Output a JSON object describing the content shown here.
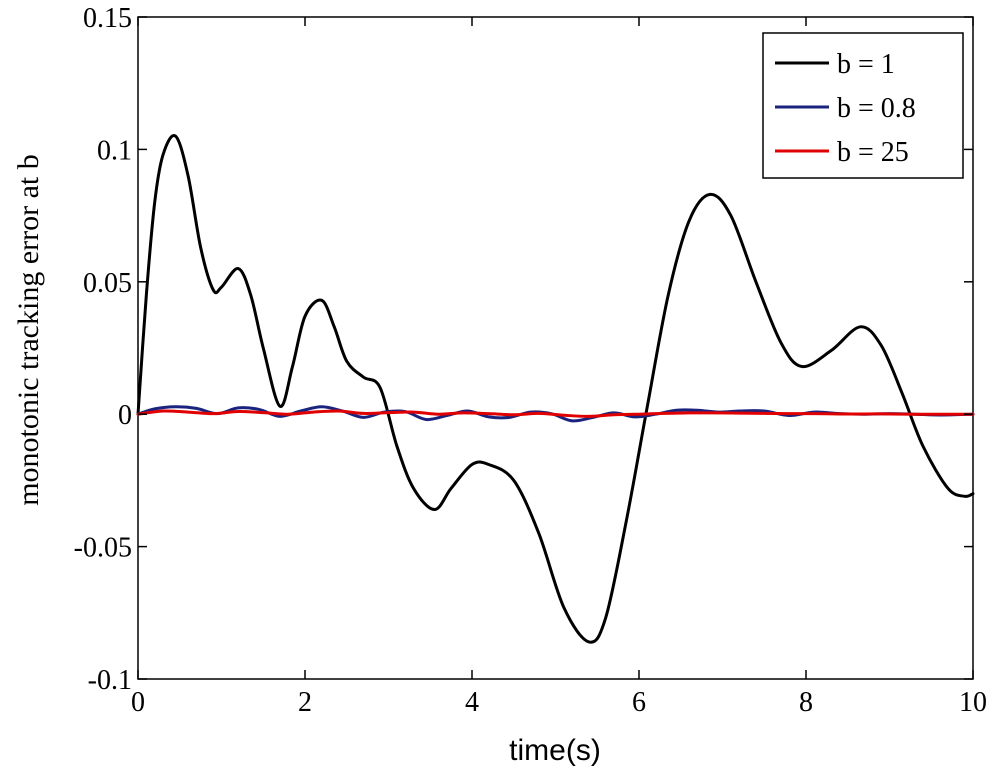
{
  "chart_data": {
    "type": "line",
    "title": "",
    "xlabel": "time(s)",
    "ylabel": "monotonic tracking error at b",
    "xlim": [
      0,
      10
    ],
    "ylim": [
      -0.1,
      0.15
    ],
    "xticks": [
      0,
      2,
      4,
      6,
      8,
      10
    ],
    "xtick_labels": [
      "0",
      "2",
      "4",
      "6",
      "8",
      "10"
    ],
    "yticks": [
      -0.1,
      -0.05,
      0,
      0.05,
      0.1,
      0.15
    ],
    "ytick_labels": [
      "-0.1",
      "-0.05",
      "0",
      "0.05",
      "0.1",
      "0.15"
    ],
    "grid": false,
    "legend_position": "top-right",
    "series": [
      {
        "name": "b = 1",
        "color": "#000000",
        "x": [
          0,
          0.1,
          0.2,
          0.3,
          0.45,
          0.6,
          0.75,
          0.9,
          1.0,
          1.2,
          1.35,
          1.5,
          1.7,
          1.85,
          2.0,
          2.2,
          2.35,
          2.5,
          2.7,
          2.9,
          3.1,
          3.3,
          3.55,
          3.75,
          4.0,
          4.2,
          4.5,
          4.8,
          5.1,
          5.4,
          5.6,
          5.85,
          6.1,
          6.35,
          6.6,
          6.85,
          7.1,
          7.4,
          7.7,
          7.95,
          8.3,
          8.65,
          8.9,
          9.15,
          9.4,
          9.7,
          9.9,
          10.0
        ],
        "values": [
          0.0,
          0.045,
          0.08,
          0.098,
          0.105,
          0.09,
          0.063,
          0.047,
          0.048,
          0.055,
          0.045,
          0.025,
          0.003,
          0.018,
          0.037,
          0.043,
          0.033,
          0.02,
          0.014,
          0.01,
          -0.012,
          -0.028,
          -0.036,
          -0.028,
          -0.019,
          -0.019,
          -0.025,
          -0.045,
          -0.073,
          -0.086,
          -0.077,
          -0.04,
          0.003,
          0.045,
          0.073,
          0.083,
          0.075,
          0.05,
          0.027,
          0.018,
          0.024,
          0.033,
          0.026,
          0.008,
          -0.012,
          -0.028,
          -0.031,
          -0.03
        ]
      },
      {
        "name": "b = 0.8",
        "color": "#1a237e",
        "x": [
          0,
          0.2,
          0.45,
          0.7,
          0.95,
          1.2,
          1.45,
          1.7,
          1.95,
          2.2,
          2.45,
          2.7,
          2.95,
          3.2,
          3.45,
          3.7,
          3.95,
          4.2,
          4.45,
          4.7,
          4.95,
          5.2,
          5.45,
          5.7,
          5.95,
          6.2,
          6.45,
          6.7,
          6.95,
          7.2,
          7.5,
          7.8,
          8.1,
          8.4,
          8.7,
          9.0,
          9.3,
          9.6,
          10.0
        ],
        "values": [
          0.0,
          0.002,
          0.0028,
          0.0022,
          0.0002,
          0.0024,
          0.0018,
          -0.0008,
          0.0012,
          0.0028,
          0.0012,
          -0.0012,
          0.0008,
          0.001,
          -0.002,
          -0.0005,
          0.0012,
          -0.001,
          -0.0012,
          0.0008,
          0.0002,
          -0.0025,
          -0.0012,
          0.0005,
          -0.001,
          0.0,
          0.0015,
          0.0015,
          0.0008,
          0.0012,
          0.0012,
          -0.0005,
          0.0008,
          0.0002,
          0.0,
          0.0002,
          0.0,
          -0.0003,
          0.0
        ]
      },
      {
        "name": "b = 25",
        "color": "#e00000",
        "x": [
          0,
          0.3,
          0.6,
          0.9,
          1.2,
          1.5,
          1.8,
          2.1,
          2.4,
          2.7,
          3.0,
          3.3,
          3.6,
          3.9,
          4.2,
          4.5,
          4.8,
          5.1,
          5.4,
          5.7,
          6.0,
          6.3,
          6.6,
          6.9,
          7.2,
          7.5,
          7.8,
          8.1,
          8.4,
          8.7,
          9.0,
          9.3,
          9.6,
          10.0
        ],
        "values": [
          0.0,
          0.0012,
          0.0008,
          0.0002,
          0.001,
          0.0006,
          0.0,
          0.0008,
          0.0012,
          0.0003,
          0.0006,
          0.0008,
          0.0,
          0.0005,
          0.0002,
          -0.0002,
          0.0003,
          -0.0004,
          -0.0008,
          -0.0002,
          0.0,
          0.0003,
          0.0005,
          0.0005,
          0.0004,
          0.0003,
          0.0002,
          0.0002,
          0.0001,
          0.0001,
          0.0001,
          0.0,
          0.0,
          0.0
        ]
      }
    ]
  }
}
